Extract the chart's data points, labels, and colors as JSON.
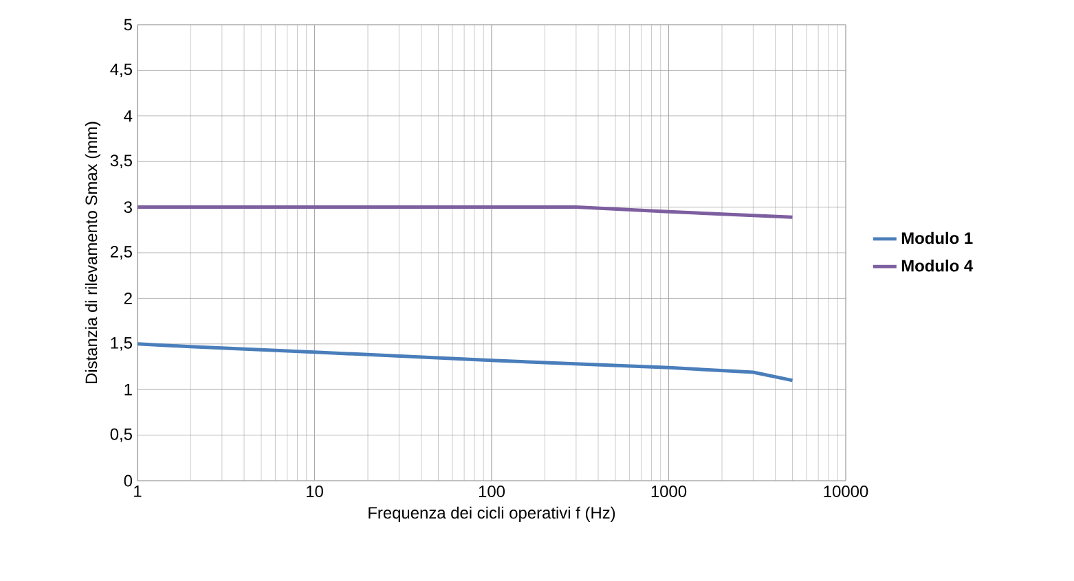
{
  "chart_data": {
    "type": "line",
    "xlabel": "Frequenza dei cicli operativi f (Hz)",
    "ylabel": "Distanzia di rilevamento Smax (mm)",
    "log": "x",
    "grid": true,
    "legend": "right",
    "xlim": [
      1,
      10000
    ],
    "xticks": [
      1,
      10,
      100,
      1000,
      10000
    ],
    "ylim": [
      0,
      5
    ],
    "yticks": [
      0,
      {
        "value": 0.5,
        "label": "0,5"
      },
      1,
      {
        "value": 1.5,
        "label": "1,5"
      },
      2,
      {
        "value": 2.5,
        "label": "2,5"
      },
      3,
      {
        "value": 3.5,
        "label": "3,5"
      },
      4,
      {
        "value": 4.5,
        "label": "4,5"
      },
      5
    ],
    "series": [
      {
        "name": "Modulo 1",
        "color": "#4a7ebb",
        "x": [
          1,
          2,
          10,
          100,
          1000,
          3000,
          5000
        ],
        "values": [
          1.5,
          1.47,
          1.41,
          1.32,
          1.24,
          1.19,
          1.1
        ]
      },
      {
        "name": "Modulo 4",
        "color": "#7d5fa0",
        "x": [
          1,
          300,
          1000,
          5000
        ],
        "values": [
          3.0,
          3.0,
          2.95,
          2.89
        ]
      }
    ]
  }
}
